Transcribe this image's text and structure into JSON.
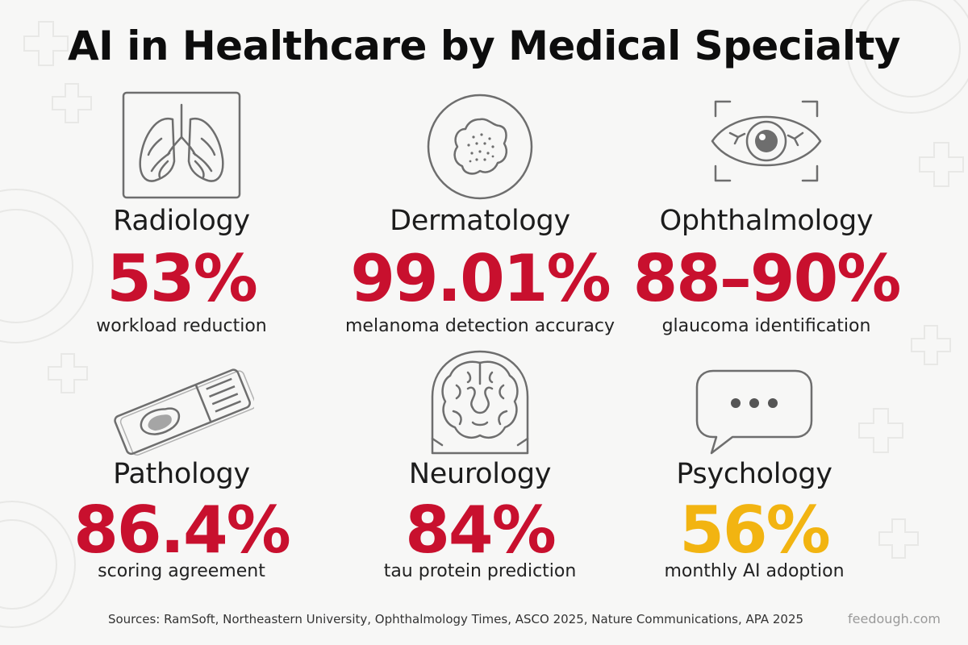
{
  "title": "AI in Healthcare by Medical Specialty",
  "colors": {
    "accent_red": "#c8102e",
    "accent_yellow": "#f2b411",
    "icon_stroke": "#6e6e6e"
  },
  "specialties": [
    {
      "name": "Radiology",
      "value": "53%",
      "description": "workload reduction",
      "icon": "lungs-icon",
      "color": "#c8102e"
    },
    {
      "name": "Dermatology",
      "value": "99.01%",
      "description": "melanoma detection accuracy",
      "icon": "skin-lesion-icon",
      "color": "#c8102e"
    },
    {
      "name": "Ophthalmology",
      "value": "88–90%",
      "description": "glaucoma identification",
      "icon": "eye-icon",
      "color": "#c8102e"
    },
    {
      "name": "Pathology",
      "value": "86.4%",
      "description": "scoring agreement",
      "icon": "microscope-slide-icon",
      "color": "#c8102e"
    },
    {
      "name": "Neurology",
      "value": "84%",
      "description": "tau protein prediction",
      "icon": "brain-scan-icon",
      "color": "#c8102e"
    },
    {
      "name": "Psychology",
      "value": "56%",
      "description": "monthly AI adoption",
      "icon": "speech-bubble-icon",
      "color": "#f2b411"
    }
  ],
  "sources": "Sources: RamSoft, Northeastern University, Ophthalmology Times, ASCO 2025, Nature Communications, APA 2025",
  "brand": "feedough.com"
}
